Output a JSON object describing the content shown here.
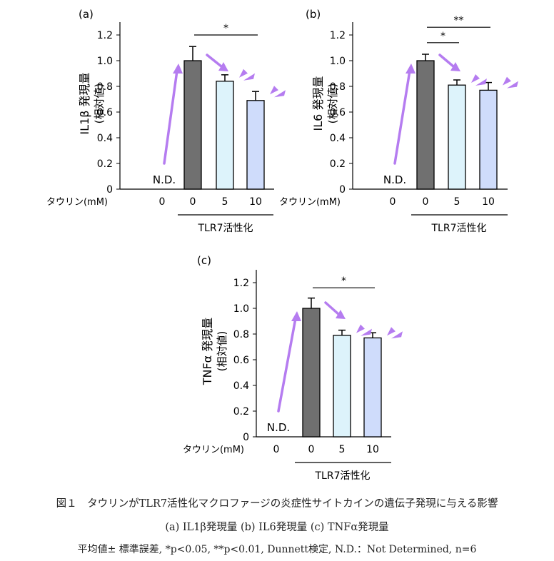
{
  "figure": {
    "caption": "図１　タウリンがTLR7活性化マクロファージの炎症性サイトカインの遺伝子発現に与える影響",
    "sub_caption": "(a) IL1β発現量 (b) IL6発現量 (c) TNFα発現量",
    "note": "平均値± 標準誤差, *p<0.05, **p<0.01, Dunnett検定, N.D.：Not Determined, n=6"
  },
  "colors": {
    "control_bar": "#707070",
    "dose5_bar": "#ddf3fb",
    "dose10_bar": "#cfdcfb",
    "arrow": "#b57cf0",
    "axis": "#000000"
  },
  "chart_data": [
    {
      "type": "bar",
      "panel": "(a)",
      "ylabel": "IL1β 発現量",
      "ylabel_sub": "(相対値)",
      "x_axis_label": "タウリン(mM)",
      "categories": [
        "0",
        "0",
        "5",
        "10"
      ],
      "values": [
        0,
        1.0,
        0.84,
        0.69
      ],
      "errors": [
        0,
        0.11,
        0.05,
        0.07
      ],
      "bar_labels": [
        "N.D.",
        "",
        "",
        ""
      ],
      "group_label": "TLR7活性化",
      "yticks": [
        "0",
        "0.2",
        "0.4",
        "0.6",
        "0.8",
        "1.0",
        "1.2"
      ],
      "ylim": [
        0,
        1.3
      ],
      "significance": [
        {
          "from": 1,
          "to": 3,
          "label": "*"
        }
      ]
    },
    {
      "type": "bar",
      "panel": "(b)",
      "ylabel": "IL6 発現量",
      "ylabel_sub": "(相対値)",
      "x_axis_label": "タウリン(mM)",
      "categories": [
        "0",
        "0",
        "5",
        "10"
      ],
      "values": [
        0,
        1.0,
        0.81,
        0.77
      ],
      "errors": [
        0,
        0.05,
        0.04,
        0.06
      ],
      "bar_labels": [
        "N.D.",
        "",
        "",
        ""
      ],
      "group_label": "TLR7活性化",
      "yticks": [
        "0",
        "0.2",
        "0.4",
        "0.6",
        "0.8",
        "1.0",
        "1.2"
      ],
      "ylim": [
        0,
        1.3
      ],
      "significance": [
        {
          "from": 1,
          "to": 2,
          "label": "*"
        },
        {
          "from": 1,
          "to": 3,
          "label": "**"
        }
      ]
    },
    {
      "type": "bar",
      "panel": "(c)",
      "ylabel": "TNFα 発現量",
      "ylabel_sub": "(相対値)",
      "x_axis_label": "タウリン(mM)",
      "categories": [
        "0",
        "0",
        "5",
        "10"
      ],
      "values": [
        0,
        1.0,
        0.79,
        0.77
      ],
      "errors": [
        0,
        0.08,
        0.04,
        0.04
      ],
      "bar_labels": [
        "N.D.",
        "",
        "",
        ""
      ],
      "group_label": "TLR7活性化",
      "yticks": [
        "0",
        "0.2",
        "0.4",
        "0.6",
        "0.8",
        "1.0",
        "1.2"
      ],
      "ylim": [
        0,
        1.3
      ],
      "significance": [
        {
          "from": 1,
          "to": 3,
          "label": "*"
        }
      ]
    }
  ]
}
